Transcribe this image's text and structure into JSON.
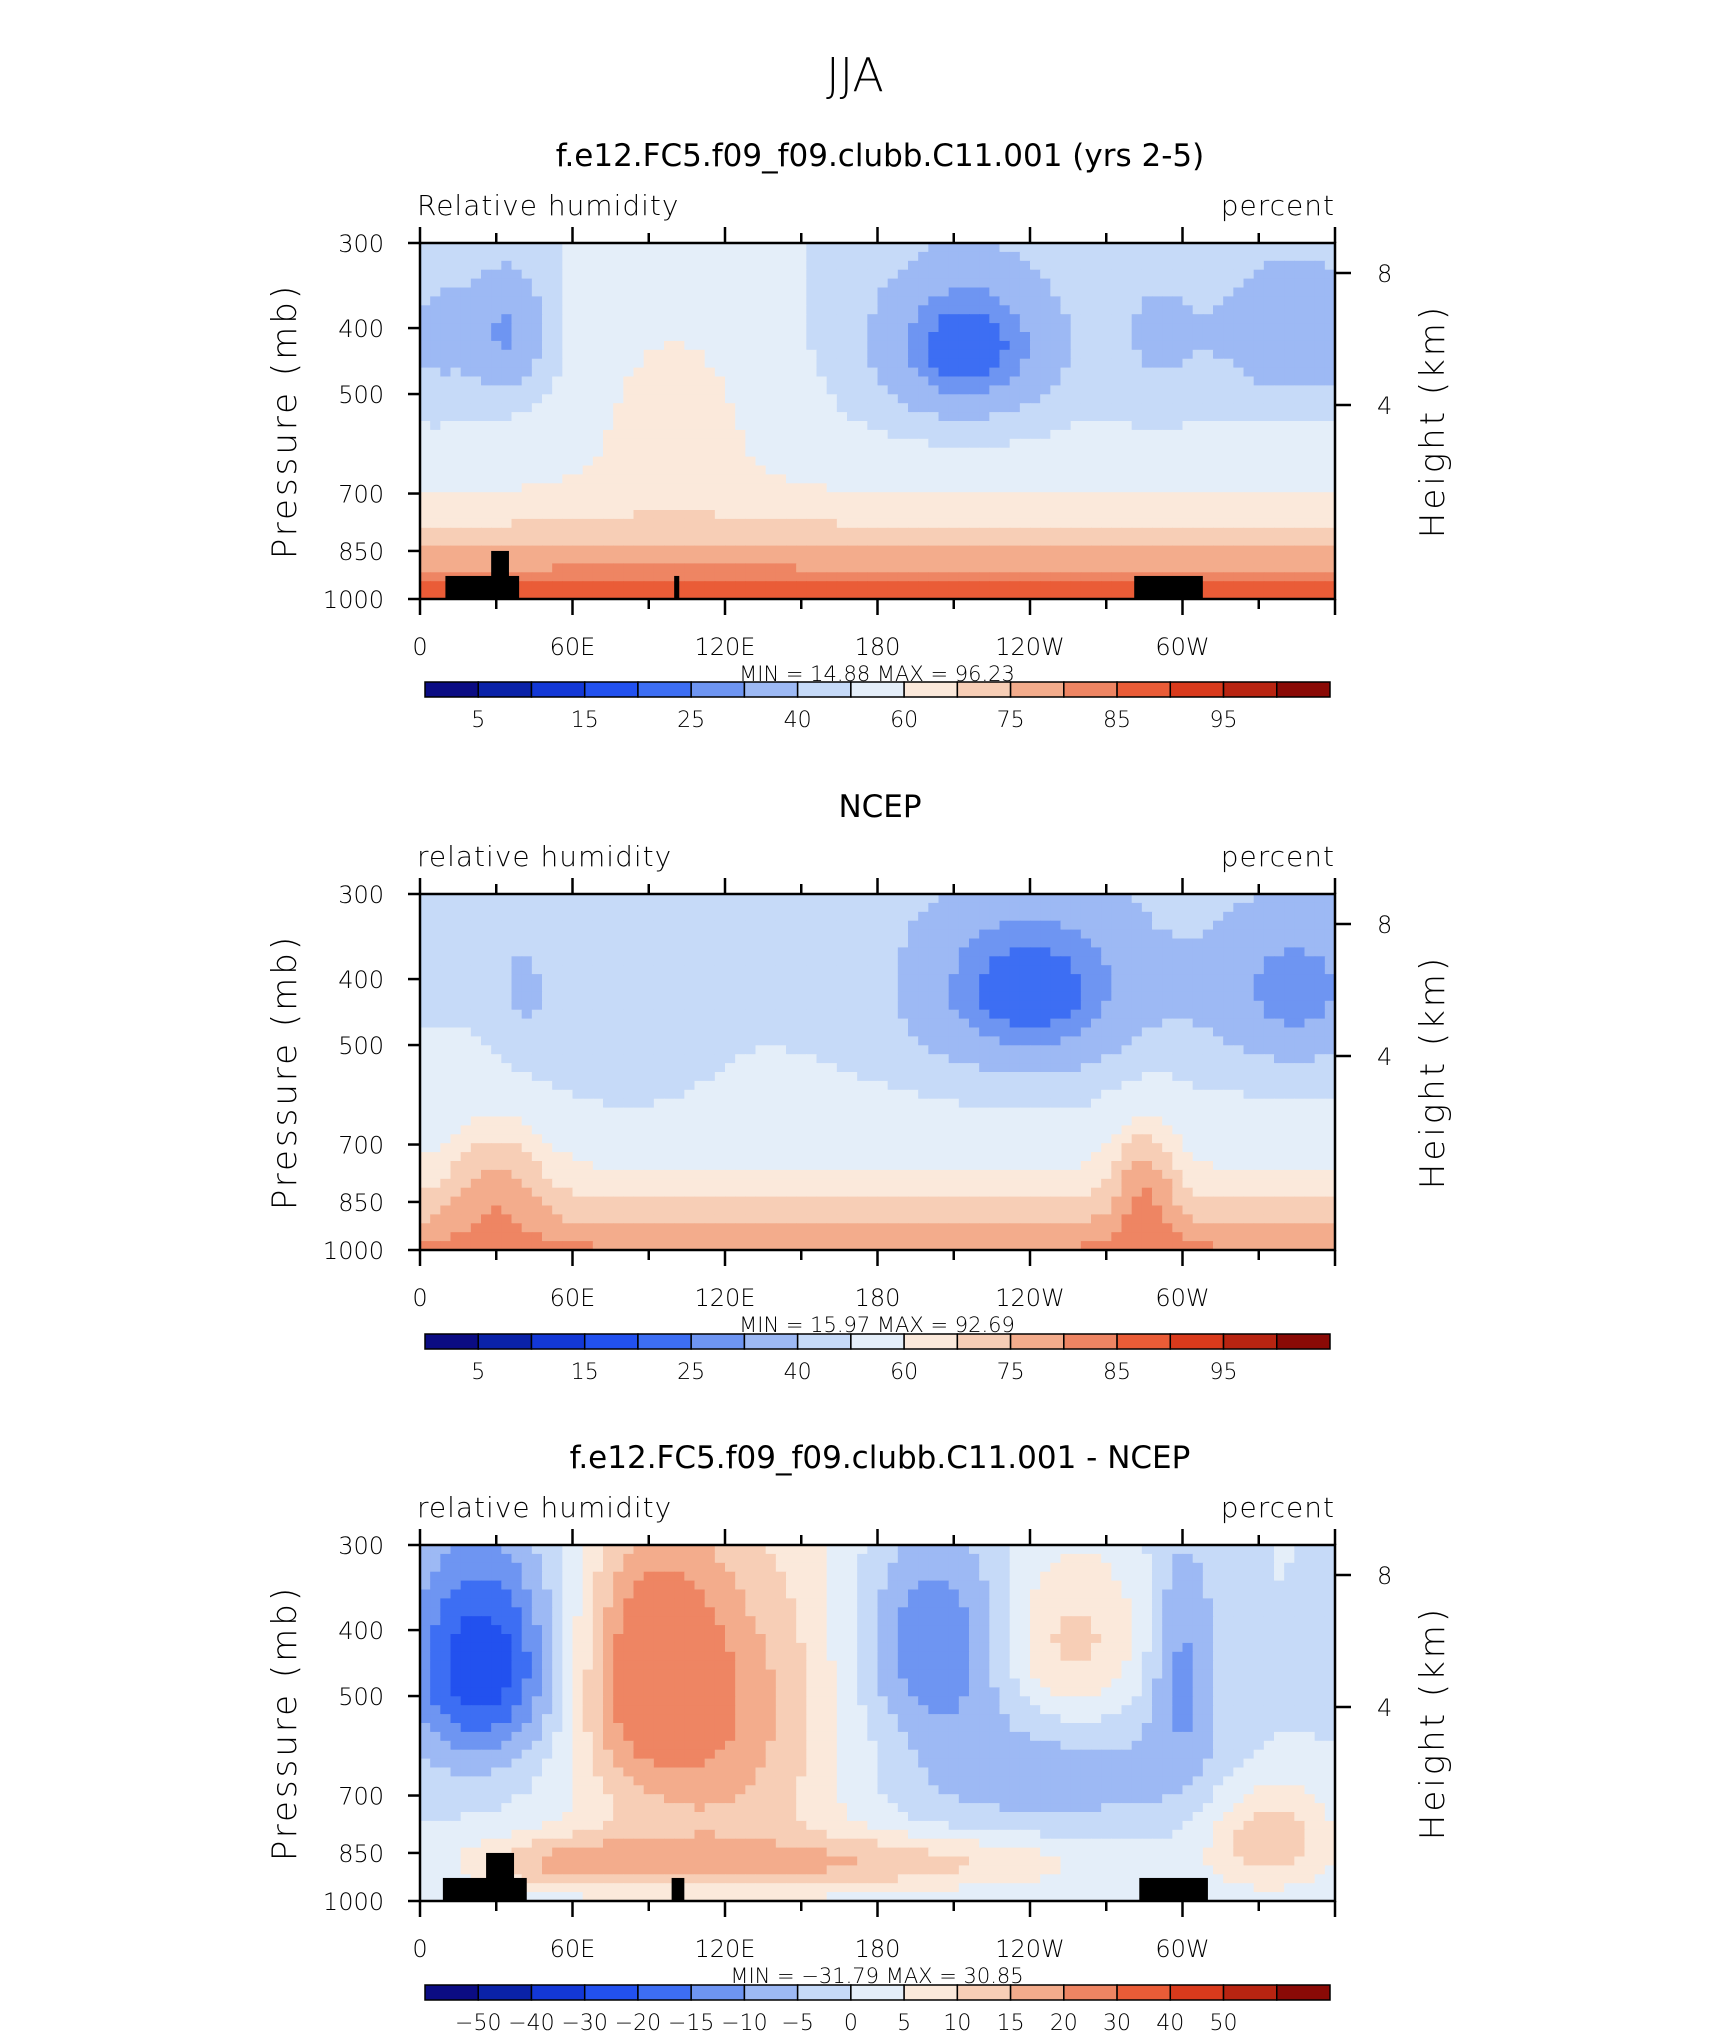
{
  "figure": {
    "title": "JJA"
  },
  "colors": {
    "rh_levels": [
      "#0b0c83",
      "#0a22a8",
      "#1338d6",
      "#2251ef",
      "#3d6ef3",
      "#6e95f2",
      "#9db9f4",
      "#c6daf8",
      "#e4eef9",
      "#fbe9db",
      "#f7ceb6",
      "#f3ac8c",
      "#ee8563",
      "#ea5c37",
      "#d93a1c",
      "#b82411",
      "#8a0a06"
    ],
    "diff_levels": [
      "#0b0c83",
      "#0a22a8",
      "#1338d6",
      "#2251ef",
      "#3d6ef3",
      "#6e95f2",
      "#9db9f4",
      "#c6daf8",
      "#e4eef9",
      "#fbe9db",
      "#f7ceb6",
      "#f3ac8c",
      "#ee8563",
      "#ea5c37",
      "#d93a1c",
      "#b82411",
      "#8a0a06"
    ]
  },
  "chart_data": [
    {
      "type": "heatmap",
      "title": "f.e12.FC5.f09_f09.clubb.C11.001 (yrs 2-5)",
      "left_label": "Relative humidity",
      "right_label": "percent",
      "ylabel": "Pressure (mb)",
      "ylabel_right": "Height (km)",
      "x_ticks": [
        "0",
        "60E",
        "120E",
        "180",
        "120W",
        "60W"
      ],
      "y_ticks": [
        "300",
        "400",
        "500",
        "700",
        "850",
        "1000"
      ],
      "y_values": [
        300,
        400,
        500,
        700,
        850,
        1000
      ],
      "y_right_ticks": [
        "8",
        "4"
      ],
      "stats": "MIN =   14.88   MAX =   96.23",
      "min": 14.88,
      "max": 96.23,
      "colorbar_labels": [
        "5",
        "15",
        "25",
        "40",
        "60",
        "75",
        "85",
        "95"
      ],
      "field": "model",
      "masked": [
        [
          10,
          39,
          925,
          1000
        ],
        [
          28,
          35,
          850,
          1000
        ],
        [
          100,
          102,
          925,
          1000
        ],
        [
          281,
          308,
          925,
          1000
        ]
      ]
    },
    {
      "type": "heatmap",
      "title": "NCEP",
      "left_label": "relative humidity",
      "right_label": "percent",
      "ylabel": "Pressure (mb)",
      "ylabel_right": "Height (km)",
      "x_ticks": [
        "0",
        "60E",
        "120E",
        "180",
        "120W",
        "60W"
      ],
      "y_ticks": [
        "300",
        "400",
        "500",
        "700",
        "850",
        "1000"
      ],
      "y_values": [
        300,
        400,
        500,
        700,
        850,
        1000
      ],
      "y_right_ticks": [
        "8",
        "4"
      ],
      "stats": "MIN =   15.97   MAX =   92.69",
      "min": 15.97,
      "max": 92.69,
      "colorbar_labels": [
        "5",
        "15",
        "25",
        "40",
        "60",
        "75",
        "85",
        "95"
      ],
      "field": "obs",
      "masked": []
    },
    {
      "type": "heatmap",
      "title": "f.e12.FC5.f09_f09.clubb.C11.001 - NCEP",
      "left_label": "relative humidity",
      "right_label": "percent",
      "ylabel": "Pressure (mb)",
      "ylabel_right": "Height (km)",
      "x_ticks": [
        "0",
        "60E",
        "120E",
        "180",
        "120W",
        "60W"
      ],
      "y_ticks": [
        "300",
        "400",
        "500",
        "700",
        "850",
        "1000"
      ],
      "y_values": [
        300,
        400,
        500,
        700,
        850,
        1000
      ],
      "y_right_ticks": [
        "8",
        "4"
      ],
      "stats": "MIN = −31.79   MAX =   30.85",
      "min": -31.79,
      "max": 30.85,
      "colorbar_labels": [
        "−50",
        "−40",
        "−30",
        "−20",
        "−15",
        "−10",
        "−5",
        "0",
        "5",
        "10",
        "15",
        "20",
        "30",
        "40",
        "50"
      ],
      "field": "diff",
      "masked": [
        [
          9,
          42,
          925,
          1000
        ],
        [
          26,
          37,
          850,
          1000
        ],
        [
          99,
          104,
          925,
          1000
        ],
        [
          283,
          310,
          925,
          1000
        ]
      ]
    }
  ]
}
